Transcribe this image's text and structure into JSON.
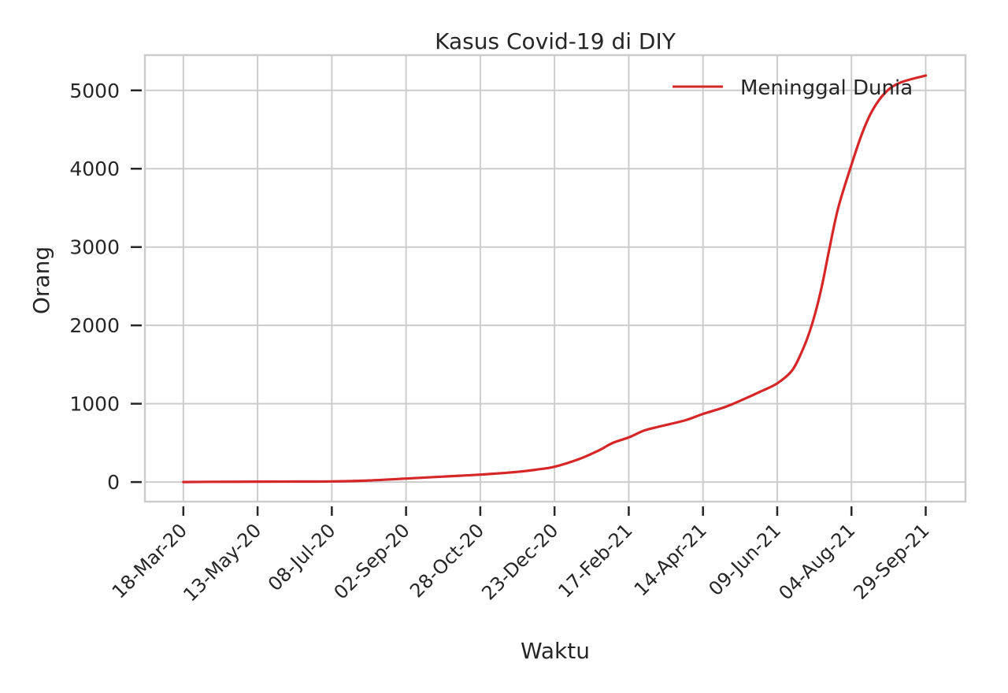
{
  "chart_data": {
    "type": "line",
    "title": "Kasus Covid-19 di DIY",
    "xlabel": "Waktu",
    "ylabel": "Orang",
    "x_ticks": [
      "18-Mar-20",
      "13-May-20",
      "08-Jul-20",
      "02-Sep-20",
      "28-Oct-20",
      "23-Dec-20",
      "17-Feb-21",
      "14-Apr-21",
      "09-Jun-21",
      "04-Aug-21",
      "29-Sep-21"
    ],
    "y_ticks": [
      0,
      1000,
      2000,
      3000,
      4000,
      5000
    ],
    "xlim": [
      "2020-02-18",
      "2021-10-29"
    ],
    "ylim": [
      -250,
      5450
    ],
    "grid": true,
    "legend_position": "top-right",
    "series": [
      {
        "name": "Meninggal Dunia",
        "color": "#d62728",
        "points": [
          [
            "2020-03-18",
            0
          ],
          [
            "2020-04-10",
            3
          ],
          [
            "2020-05-13",
            5
          ],
          [
            "2020-06-10",
            6
          ],
          [
            "2020-07-08",
            8
          ],
          [
            "2020-08-05",
            20
          ],
          [
            "2020-09-02",
            45
          ],
          [
            "2020-09-30",
            70
          ],
          [
            "2020-10-28",
            95
          ],
          [
            "2020-11-25",
            130
          ],
          [
            "2020-12-10",
            160
          ],
          [
            "2020-12-23",
            195
          ],
          [
            "2021-01-10",
            290
          ],
          [
            "2021-01-25",
            400
          ],
          [
            "2021-02-05",
            500
          ],
          [
            "2021-02-17",
            570
          ],
          [
            "2021-03-01",
            660
          ],
          [
            "2021-03-15",
            720
          ],
          [
            "2021-04-01",
            790
          ],
          [
            "2021-04-14",
            870
          ],
          [
            "2021-05-01",
            960
          ],
          [
            "2021-05-15",
            1060
          ],
          [
            "2021-05-28",
            1160
          ],
          [
            "2021-06-09",
            1260
          ],
          [
            "2021-06-20",
            1420
          ],
          [
            "2021-06-28",
            1680
          ],
          [
            "2021-07-05",
            2000
          ],
          [
            "2021-07-12",
            2450
          ],
          [
            "2021-07-18",
            2950
          ],
          [
            "2021-07-25",
            3500
          ],
          [
            "2021-08-04",
            4050
          ],
          [
            "2021-08-12",
            4450
          ],
          [
            "2021-08-20",
            4750
          ],
          [
            "2021-08-30",
            4980
          ],
          [
            "2021-09-10",
            5100
          ],
          [
            "2021-09-29",
            5190
          ]
        ]
      }
    ]
  }
}
